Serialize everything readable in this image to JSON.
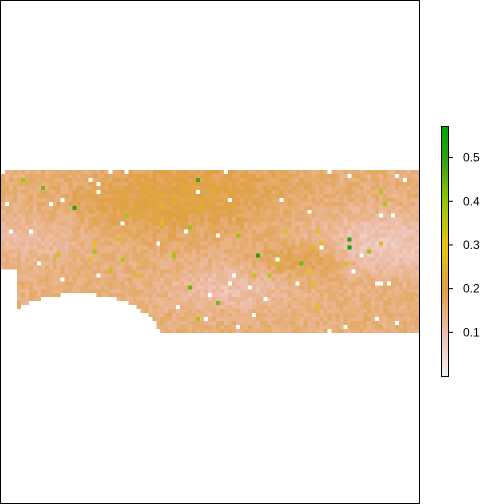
{
  "chart_data": {
    "type": "heatmap",
    "title": "",
    "xlabel": "",
    "ylabel": "",
    "axes_visible": false,
    "grid": false,
    "legend": {
      "placement": "right",
      "kind": "continuous-colorbar",
      "range": [
        0.0,
        0.57
      ],
      "ticks": [
        {
          "value": 0.1,
          "label": "0.1"
        },
        {
          "value": 0.2,
          "label": "0.2"
        },
        {
          "value": 0.3,
          "label": "0.3"
        },
        {
          "value": 0.4,
          "label": "0.4"
        },
        {
          "value": 0.5,
          "label": "0.5"
        }
      ]
    },
    "palette": [
      {
        "value": 0.0,
        "color": "#f2f2f2"
      },
      {
        "value": 0.1,
        "color": "#eebfae"
      },
      {
        "value": 0.2,
        "color": "#e0a046"
      },
      {
        "value": 0.3,
        "color": "#e6c413"
      },
      {
        "value": 0.4,
        "color": "#97c50a"
      },
      {
        "value": 0.5,
        "color": "#2f9f14"
      },
      {
        "value": 0.57,
        "color": "#00a600"
      }
    ],
    "na_color": "#ffffff",
    "raster": {
      "typical_value": 0.15,
      "min_value": 0.05,
      "max_value": 0.55,
      "missing_region": "bottom-left (white arc)",
      "hotspots": [
        {
          "where": "center-right",
          "value_range": [
            0.25,
            0.4
          ]
        },
        {
          "where": "center-left",
          "value_range": [
            0.2,
            0.3
          ]
        }
      ]
    }
  }
}
